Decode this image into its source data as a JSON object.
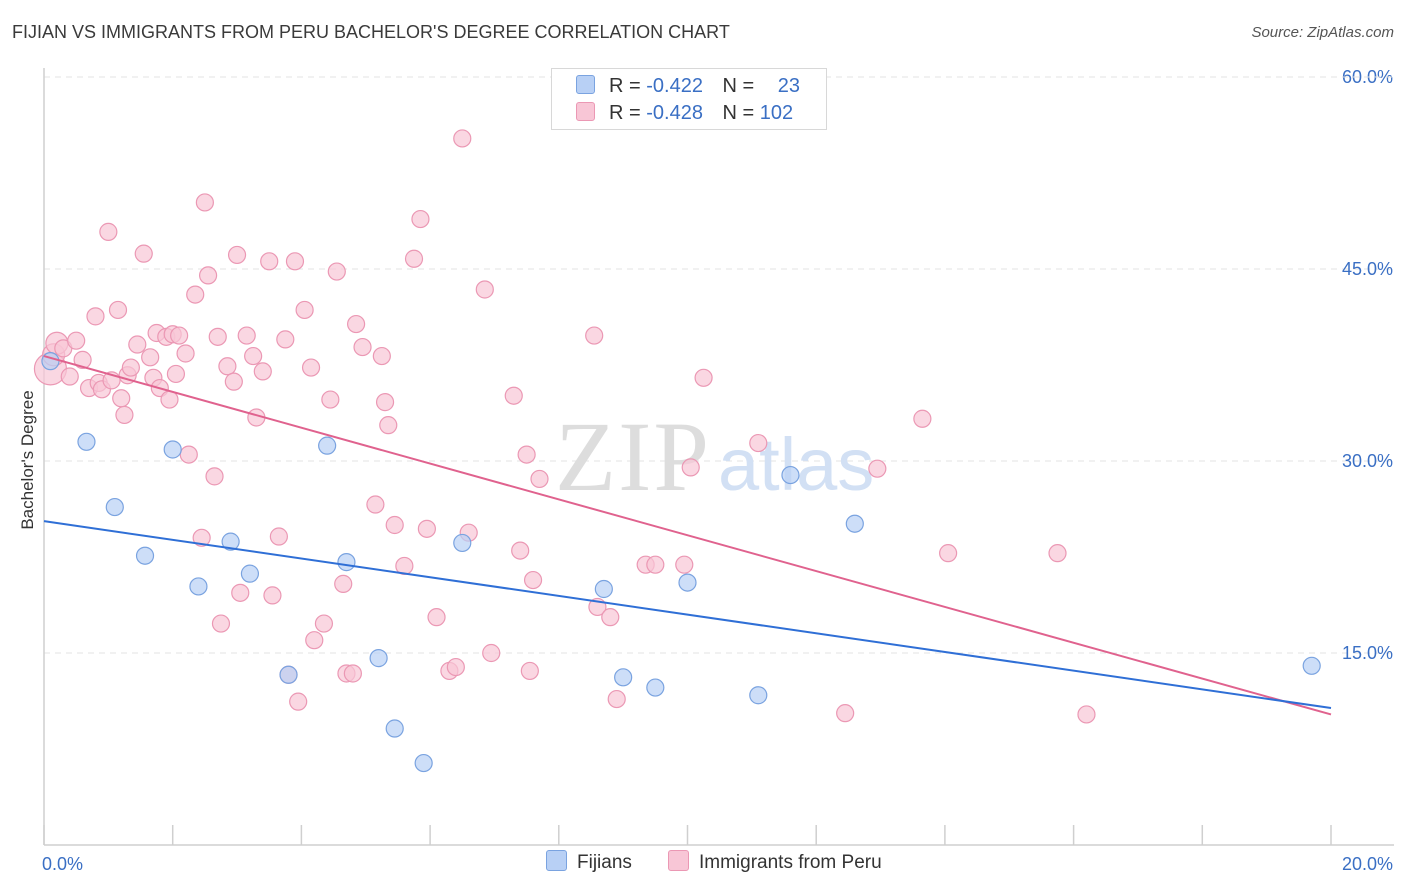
{
  "header": {
    "title": "FIJIAN VS IMMIGRANTS FROM PERU BACHELOR'S DEGREE CORRELATION CHART",
    "source": "Source: ZipAtlas.com"
  },
  "watermark": {
    "zip": "ZIP",
    "atlas": "atlas"
  },
  "legend": {
    "rows": [
      {
        "r_label": "R =",
        "r_value": "-0.422",
        "n_label": "N =",
        "n_value": "23"
      },
      {
        "r_label": "R =",
        "r_value": "-0.428",
        "n_label": "N =",
        "n_value": "102"
      }
    ]
  },
  "bottom_legend": {
    "series1": "Fijians",
    "series2": "Immigrants from Peru"
  },
  "colors": {
    "fijians_fill": "#b8d0f5",
    "fijians_stroke": "#7aa3e0",
    "fijians_line": "#2f6fd6",
    "peru_fill": "#f8c6d6",
    "peru_stroke": "#eb98b4",
    "peru_line": "#e0628e",
    "tick_label": "#3a6fc4",
    "grid": "#e3e3e3"
  },
  "chart_data": {
    "type": "scatter",
    "title": "FIJIAN VS IMMIGRANTS FROM PERU BACHELOR'S DEGREE CORRELATION CHART",
    "xlabel": "",
    "ylabel": "Bachelor's Degree",
    "xlim": [
      0,
      20
    ],
    "ylim": [
      0,
      60
    ],
    "x_tick_labels": [
      "0.0%",
      "20.0%"
    ],
    "y_ticks": [
      15,
      30,
      45,
      60
    ],
    "y_tick_labels": [
      "15.0%",
      "30.0%",
      "45.0%",
      "60.0%"
    ],
    "series": [
      {
        "name": "Fijians",
        "trend": {
          "x0": 0,
          "y0": 25.3,
          "x1": 20,
          "y1": 10.7
        },
        "points": [
          [
            0.1,
            37.8
          ],
          [
            0.66,
            31.5
          ],
          [
            1.1,
            26.4
          ],
          [
            1.57,
            22.6
          ],
          [
            2.0,
            30.9
          ],
          [
            2.4,
            20.2
          ],
          [
            2.9,
            23.7
          ],
          [
            3.2,
            21.2
          ],
          [
            3.8,
            13.3
          ],
          [
            4.4,
            31.2
          ],
          [
            4.7,
            22.1
          ],
          [
            5.2,
            14.6
          ],
          [
            5.45,
            9.1
          ],
          [
            5.9,
            6.4
          ],
          [
            6.5,
            23.6
          ],
          [
            8.7,
            20.0
          ],
          [
            9.0,
            13.1
          ],
          [
            9.5,
            12.3
          ],
          [
            10.0,
            20.5
          ],
          [
            11.1,
            11.7
          ],
          [
            11.6,
            28.9
          ],
          [
            12.6,
            25.1
          ],
          [
            19.7,
            14.0
          ]
        ]
      },
      {
        "name": "Immigrants from Peru",
        "trend": {
          "x0": 0,
          "y0": 38.2,
          "x1": 20,
          "y1": 10.2
        },
        "points": [
          [
            0.1,
            37.2
          ],
          [
            0.15,
            38.3
          ],
          [
            0.2,
            39.2
          ],
          [
            0.3,
            38.8
          ],
          [
            0.4,
            36.6
          ],
          [
            0.5,
            39.4
          ],
          [
            0.6,
            37.9
          ],
          [
            0.7,
            35.7
          ],
          [
            0.8,
            41.3
          ],
          [
            0.85,
            36.1
          ],
          [
            0.9,
            35.6
          ],
          [
            1.0,
            47.9
          ],
          [
            1.05,
            36.3
          ],
          [
            1.15,
            41.8
          ],
          [
            1.2,
            34.9
          ],
          [
            1.25,
            33.6
          ],
          [
            1.3,
            36.7
          ],
          [
            1.35,
            37.3
          ],
          [
            1.45,
            39.1
          ],
          [
            1.55,
            46.2
          ],
          [
            1.65,
            38.1
          ],
          [
            1.7,
            36.5
          ],
          [
            1.75,
            40.0
          ],
          [
            1.8,
            35.7
          ],
          [
            1.9,
            39.7
          ],
          [
            1.95,
            34.8
          ],
          [
            2.0,
            39.9
          ],
          [
            2.05,
            36.8
          ],
          [
            2.1,
            39.8
          ],
          [
            2.2,
            38.4
          ],
          [
            2.25,
            30.5
          ],
          [
            2.35,
            43.0
          ],
          [
            2.45,
            24.0
          ],
          [
            2.5,
            50.2
          ],
          [
            2.55,
            44.5
          ],
          [
            2.65,
            28.8
          ],
          [
            2.7,
            39.7
          ],
          [
            2.75,
            17.3
          ],
          [
            2.85,
            37.4
          ],
          [
            2.95,
            36.2
          ],
          [
            3.0,
            46.1
          ],
          [
            3.05,
            19.7
          ],
          [
            3.15,
            39.8
          ],
          [
            3.25,
            38.2
          ],
          [
            3.3,
            33.4
          ],
          [
            3.4,
            37.0
          ],
          [
            3.5,
            45.6
          ],
          [
            3.55,
            19.5
          ],
          [
            3.65,
            24.1
          ],
          [
            3.75,
            39.5
          ],
          [
            3.8,
            13.3
          ],
          [
            3.9,
            45.6
          ],
          [
            3.95,
            11.2
          ],
          [
            4.05,
            41.8
          ],
          [
            4.15,
            37.3
          ],
          [
            4.2,
            16.0
          ],
          [
            4.35,
            17.3
          ],
          [
            4.45,
            34.8
          ],
          [
            4.55,
            44.8
          ],
          [
            4.65,
            20.4
          ],
          [
            4.7,
            13.4
          ],
          [
            4.8,
            13.4
          ],
          [
            4.85,
            40.7
          ],
          [
            4.95,
            38.9
          ],
          [
            5.15,
            26.6
          ],
          [
            5.25,
            38.2
          ],
          [
            5.3,
            34.6
          ],
          [
            5.35,
            32.8
          ],
          [
            5.45,
            25.0
          ],
          [
            5.6,
            21.8
          ],
          [
            5.75,
            45.8
          ],
          [
            5.85,
            48.9
          ],
          [
            5.95,
            24.7
          ],
          [
            6.1,
            17.8
          ],
          [
            6.3,
            13.6
          ],
          [
            6.4,
            13.9
          ],
          [
            6.5,
            55.2
          ],
          [
            6.6,
            24.4
          ],
          [
            6.85,
            43.4
          ],
          [
            6.95,
            15.0
          ],
          [
            7.3,
            35.1
          ],
          [
            7.4,
            23.0
          ],
          [
            7.5,
            30.5
          ],
          [
            7.55,
            13.6
          ],
          [
            7.6,
            20.7
          ],
          [
            7.7,
            28.6
          ],
          [
            8.55,
            39.8
          ],
          [
            8.6,
            18.6
          ],
          [
            8.8,
            17.8
          ],
          [
            8.9,
            11.4
          ],
          [
            9.35,
            21.9
          ],
          [
            9.5,
            21.9
          ],
          [
            9.95,
            21.9
          ],
          [
            10.05,
            29.5
          ],
          [
            10.25,
            36.5
          ],
          [
            11.1,
            31.4
          ],
          [
            12.45,
            10.3
          ],
          [
            12.95,
            29.4
          ],
          [
            13.65,
            33.3
          ],
          [
            14.05,
            22.8
          ],
          [
            15.75,
            22.8
          ],
          [
            16.2,
            10.2
          ]
        ]
      }
    ]
  }
}
